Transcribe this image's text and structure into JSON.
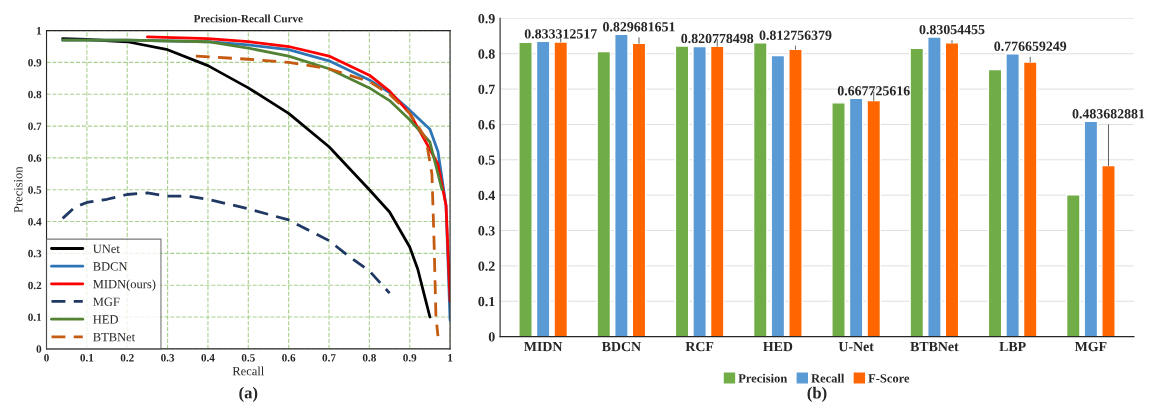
{
  "chart_data": [
    {
      "type": "line",
      "title": "Precision-Recall Curve",
      "xlabel": "Recall",
      "ylabel": "Precision",
      "xlim": [
        0,
        1
      ],
      "ylim": [
        0,
        1
      ],
      "xticks": [
        0,
        0.1,
        0.2,
        0.3,
        0.4,
        0.5,
        0.6,
        0.7,
        0.8,
        0.9,
        1
      ],
      "yticks": [
        0,
        0.1,
        0.2,
        0.3,
        0.4,
        0.5,
        0.6,
        0.7,
        0.8,
        0.9,
        1
      ],
      "grid": true,
      "legend": "bottom left",
      "annotations": [
        "(a)"
      ],
      "series": [
        {
          "name": "UNet",
          "color": "#000000",
          "line_style": "solid",
          "x": [
            0.04,
            0.1,
            0.2,
            0.3,
            0.4,
            0.5,
            0.6,
            0.7,
            0.8,
            0.85,
            0.9,
            0.92,
            0.94,
            0.95
          ],
          "values": [
            0.975,
            0.972,
            0.965,
            0.94,
            0.89,
            0.82,
            0.74,
            0.635,
            0.5,
            0.43,
            0.32,
            0.25,
            0.15,
            0.1
          ]
        },
        {
          "name": "BDCN",
          "color": "#2e75b6",
          "line_style": "solid",
          "x": [
            0.04,
            0.2,
            0.4,
            0.5,
            0.6,
            0.7,
            0.8,
            0.85,
            0.9,
            0.95,
            0.97,
            0.99,
            1.0
          ],
          "values": [
            0.97,
            0.97,
            0.965,
            0.955,
            0.94,
            0.905,
            0.845,
            0.805,
            0.75,
            0.69,
            0.62,
            0.45,
            0.09
          ]
        },
        {
          "name": "MIDN(ours)",
          "color": "#ff0000",
          "line_style": "solid",
          "x": [
            0.25,
            0.4,
            0.5,
            0.6,
            0.7,
            0.8,
            0.85,
            0.9,
            0.94,
            0.97,
            0.99,
            1.0
          ],
          "values": [
            0.98,
            0.975,
            0.965,
            0.95,
            0.92,
            0.86,
            0.81,
            0.74,
            0.65,
            0.58,
            0.45,
            0.15
          ]
        },
        {
          "name": "MGF",
          "color": "#203864",
          "line_style": "dashed",
          "x": [
            0.04,
            0.07,
            0.1,
            0.15,
            0.2,
            0.25,
            0.3,
            0.35,
            0.4,
            0.5,
            0.6,
            0.7,
            0.75,
            0.8,
            0.85
          ],
          "values": [
            0.41,
            0.445,
            0.46,
            0.47,
            0.485,
            0.49,
            0.48,
            0.48,
            0.47,
            0.44,
            0.405,
            0.34,
            0.29,
            0.245,
            0.175
          ]
        },
        {
          "name": "HED",
          "color": "#548235",
          "line_style": "solid",
          "x": [
            0.04,
            0.2,
            0.4,
            0.5,
            0.6,
            0.7,
            0.8,
            0.85,
            0.9,
            0.95,
            0.98
          ],
          "values": [
            0.97,
            0.97,
            0.965,
            0.945,
            0.92,
            0.88,
            0.82,
            0.78,
            0.72,
            0.65,
            0.5
          ]
        },
        {
          "name": "BTBNet",
          "color": "#c55a11",
          "line_style": "dashed",
          "x": [
            0.37,
            0.5,
            0.6,
            0.7,
            0.8,
            0.85,
            0.9,
            0.94,
            0.955,
            0.96,
            0.965,
            0.97
          ],
          "values": [
            0.92,
            0.91,
            0.9,
            0.88,
            0.84,
            0.8,
            0.74,
            0.66,
            0.55,
            0.35,
            0.1,
            0.04
          ]
        }
      ]
    },
    {
      "type": "bar",
      "categories": [
        "MIDN",
        "BDCN",
        "RCF",
        "HED",
        "U-Net",
        "BTBNet",
        "LBP",
        "MGF"
      ],
      "ylim": [
        0,
        0.9
      ],
      "yticks": [
        0,
        0.1,
        0.2,
        0.3,
        0.4,
        0.5,
        0.6,
        0.7,
        0.8,
        0.9
      ],
      "grid": "y",
      "legend": "bottom",
      "annotations": [
        "(b)"
      ],
      "series": [
        {
          "name": "Precision",
          "color": "#70ad47",
          "values": [
            0.832,
            0.806,
            0.822,
            0.831,
            0.661,
            0.815,
            0.755,
            0.401
          ]
        },
        {
          "name": "Recall",
          "color": "#5b9bd5",
          "values": [
            0.835,
            0.855,
            0.82,
            0.795,
            0.674,
            0.847,
            0.8,
            0.609
          ]
        },
        {
          "name": "F-Score",
          "color": "#ff6600",
          "values": [
            0.833312517,
            0.829681651,
            0.820778498,
            0.812756379,
            0.667725616,
            0.83054455,
            0.776659249,
            0.483682881
          ],
          "value_labels": [
            "0.833312517",
            "0.829681651",
            "0.820778498",
            "0.812756379",
            "0.667725616",
            "0.83054455",
            "0.776659249",
            "0.483682881"
          ]
        }
      ]
    }
  ]
}
